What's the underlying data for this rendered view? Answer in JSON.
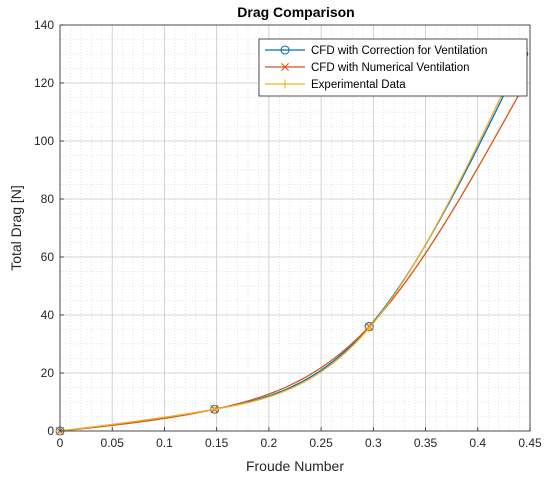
{
  "chart_data": {
    "type": "line",
    "title": "Drag Comparison",
    "xlabel": "Froude Number",
    "ylabel": "Total Drag [N]",
    "xlim": [
      0,
      0.45
    ],
    "ylim": [
      0,
      140
    ],
    "xticks": [
      "0",
      "0.05",
      "0.1",
      "0.15",
      "0.2",
      "0.25",
      "0.3",
      "0.35",
      "0.4",
      "0.45"
    ],
    "yticks": [
      "0",
      "20",
      "40",
      "60",
      "80",
      "100",
      "120",
      "140"
    ],
    "grid": true,
    "minor_grid": true,
    "legend_position": "top-right",
    "x": [
      0,
      0.148,
      0.296,
      0.444
    ],
    "series": [
      {
        "name": "CFD with Correction for Ventilation",
        "values": [
          0,
          7.5,
          36,
          130
        ],
        "color": "#0072BD",
        "marker": "circle"
      },
      {
        "name": "CFD with Numerical Ventilation",
        "values": [
          0,
          7.5,
          36,
          119
        ],
        "color": "#D95319",
        "marker": "x"
      },
      {
        "name": "Experimental Data",
        "values": [
          0,
          7.5,
          35.5,
          132
        ],
        "color": "#EDB120",
        "marker": "plus"
      }
    ]
  }
}
